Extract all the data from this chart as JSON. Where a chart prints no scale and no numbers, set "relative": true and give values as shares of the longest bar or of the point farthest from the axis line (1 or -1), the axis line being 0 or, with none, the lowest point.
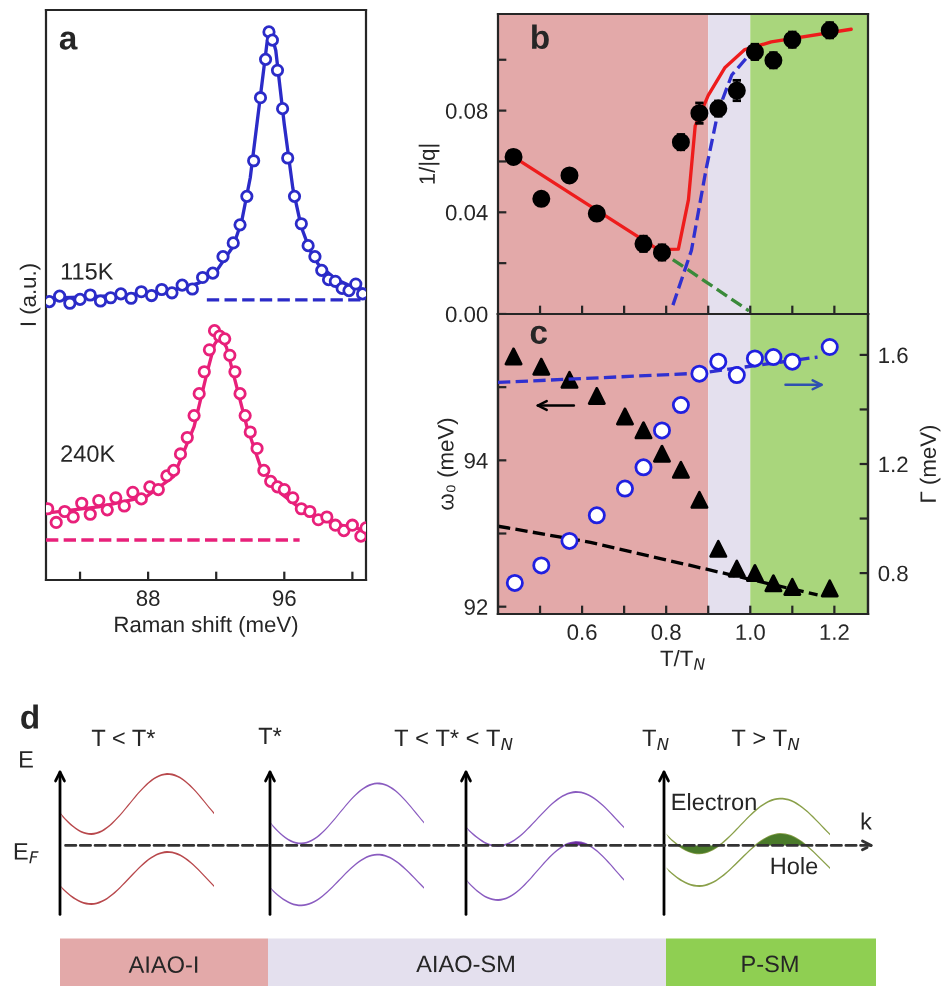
{
  "chart_data": [
    {
      "type": "line",
      "relative": true,
      "xlabel": "Raman shift (meV)",
      "ylabel": "I (a.u.)",
      "annotations": [
        "a",
        "115K",
        "240K"
      ],
      "xlim": [
        82,
        100.8
      ],
      "xticks": [
        {
          "value": 84,
          "label": null
        },
        88,
        {
          "value": 92,
          "label": null
        },
        96,
        {
          "value": 100,
          "label": null
        }
      ],
      "tick_labels": "x",
      "grid": false,
      "legend": false,
      "series": [
        {
          "type": "scatter",
          "marker": "circle",
          "color": "#2b2bc8",
          "x": [
            82.2,
            82.8,
            83.4,
            84.0,
            84.6,
            85.2,
            85.8,
            86.4,
            87.0,
            87.6,
            88.2,
            88.8,
            89.4,
            90.0,
            90.6,
            91.2,
            91.8,
            92.4,
            93.0,
            93.4,
            93.8,
            94.2,
            94.6,
            94.9,
            95.1,
            95.3,
            95.6,
            95.9,
            96.2,
            96.6,
            97.0,
            97.4,
            97.8,
            98.2,
            98.6,
            99.0,
            99.4,
            99.8,
            100.2,
            100.6
          ],
          "values": [
            0.508,
            0.518,
            0.505,
            0.512,
            0.52,
            0.509,
            0.515,
            0.522,
            0.514,
            0.526,
            0.519,
            0.53,
            0.524,
            0.538,
            0.531,
            0.552,
            0.56,
            0.59,
            0.615,
            0.648,
            0.7,
            0.765,
            0.88,
            0.95,
            1.0,
            0.985,
            0.93,
            0.86,
            0.77,
            0.7,
            0.65,
            0.61,
            0.59,
            0.565,
            0.548,
            0.545,
            0.532,
            0.528,
            0.54,
            0.522
          ]
        },
        {
          "type": "line",
          "line_style": "solid",
          "color": "#2b2bc8",
          "x": [
            82,
            84,
            86,
            88,
            90,
            91,
            92,
            93,
            93.5,
            94,
            94.5,
            95,
            95.2,
            95.5,
            96,
            96.5,
            97,
            97.5,
            98,
            99,
            100,
            100.8
          ],
          "values": [
            0.514,
            0.516,
            0.519,
            0.524,
            0.532,
            0.542,
            0.563,
            0.609,
            0.655,
            0.734,
            0.859,
            0.984,
            1.0,
            0.966,
            0.831,
            0.715,
            0.644,
            0.602,
            0.576,
            0.549,
            0.535,
            0.529
          ]
        },
        {
          "type": "line",
          "line_style": "dashed",
          "color": "#2b2bc8",
          "x": [
            91.45,
            100.8
          ],
          "values": [
            0.511,
            0.511
          ]
        },
        {
          "type": "scatter",
          "marker": "circle",
          "color": "#e8207a",
          "x": [
            82.1,
            82.6,
            83.1,
            83.6,
            84.1,
            84.6,
            85.1,
            85.6,
            86.1,
            86.6,
            87.1,
            87.6,
            88.1,
            88.6,
            89.1,
            89.5,
            89.9,
            90.3,
            90.7,
            91.0,
            91.3,
            91.6,
            91.9,
            92.2,
            92.5,
            92.8,
            93.1,
            93.4,
            93.7,
            94.0,
            94.4,
            94.8,
            95.2,
            95.6,
            96.0,
            96.5,
            97.0,
            97.5,
            98.0,
            98.5,
            99.0,
            99.5,
            100.0,
            100.5,
            100.8
          ],
          "values": [
            0.13,
            0.105,
            0.125,
            0.115,
            0.14,
            0.12,
            0.145,
            0.128,
            0.15,
            0.135,
            0.16,
            0.148,
            0.17,
            0.165,
            0.19,
            0.2,
            0.23,
            0.26,
            0.3,
            0.34,
            0.38,
            0.42,
            0.455,
            0.445,
            0.44,
            0.41,
            0.38,
            0.34,
            0.3,
            0.27,
            0.24,
            0.2,
            0.18,
            0.17,
            0.165,
            0.15,
            0.13,
            0.125,
            0.11,
            0.115,
            0.1,
            0.09,
            0.1,
            0.08,
            0.095
          ]
        },
        {
          "type": "line",
          "line_style": "solid",
          "color": "#e8207a",
          "x": [
            82.0,
            85.2,
            87.9,
            89.5,
            90.7,
            91.45,
            91.9,
            92.2,
            92.6,
            93.0,
            93.8,
            94.6,
            95.8,
            97.3,
            98.9,
            100.8
          ],
          "values": [
            0.122,
            0.134,
            0.152,
            0.189,
            0.28,
            0.377,
            0.43,
            0.444,
            0.425,
            0.377,
            0.28,
            0.207,
            0.158,
            0.122,
            0.103,
            0.091
          ]
        },
        {
          "type": "line",
          "line_style": "dashed",
          "color": "#e8207a",
          "x": [
            82.0,
            96.9
          ],
          "values": [
            0.073,
            0.073
          ]
        }
      ]
    },
    {
      "type": "scatter",
      "ylabel": "1/|q|",
      "annotations": [
        "b"
      ],
      "xlim": [
        0.4,
        1.28
      ],
      "xticks": [
        {
          "value": 0.5,
          "label": null
        },
        {
          "value": 0.6,
          "label": null
        },
        {
          "value": 0.7,
          "label": null
        },
        {
          "value": 0.8,
          "label": null
        },
        {
          "value": 0.9,
          "label": null
        },
        {
          "value": 1.0,
          "label": null
        },
        {
          "value": 1.1,
          "label": null
        },
        {
          "value": 1.2,
          "label": null
        }
      ],
      "ylim": [
        0,
        0.118
      ],
      "yticks": [
        {
          "value": 0,
          "label": "0.00"
        },
        {
          "value": 0.02,
          "label": null
        },
        {
          "value": 0.04,
          "label": "0.04"
        },
        {
          "value": 0.06,
          "label": null
        },
        {
          "value": 0.08,
          "label": "0.08"
        },
        {
          "value": 0.1,
          "label": null
        }
      ],
      "tick_labels": "y",
      "grid": false,
      "legend": false,
      "bands": [
        {
          "axis": "x",
          "from": 0.4,
          "to": 0.9,
          "color": "#e3a9a9"
        },
        {
          "axis": "x",
          "from": 0.9,
          "to": 1.0,
          "color": "#e4e0ee"
        },
        {
          "axis": "x",
          "from": 1.0,
          "to": 1.28,
          "color": "#a9d67c"
        }
      ],
      "series": [
        {
          "type": "line",
          "line_style": "solid",
          "color": "#ee1c1c",
          "x": [
            0.437,
            0.781,
            0.829,
            0.853,
            0.869,
            0.9,
            0.94,
            0.987,
            1.05,
            1.24
          ],
          "values": [
            0.0618,
            0.0253,
            0.0255,
            0.045,
            0.074,
            0.086,
            0.097,
            0.104,
            0.107,
            0.112
          ]
        },
        {
          "type": "line",
          "line_style": "dashed",
          "color": "#3030d0",
          "x": [
            0.816,
            0.86,
            0.895,
            0.924,
            0.956,
            1.003
          ],
          "values": [
            0.0035,
            0.025,
            0.057,
            0.08,
            0.094,
            0.103
          ]
        },
        {
          "type": "line",
          "line_style": "dashed",
          "color": "#3a8a3a",
          "x": [
            0.781,
            0.997
          ],
          "values": [
            0.0253,
            0.0012
          ]
        },
        {
          "type": "scatter",
          "marker": "circle",
          "color": "#000000",
          "x": [
            0.437,
            0.503,
            0.57,
            0.635,
            0.746,
            0.79,
            0.835,
            0.879,
            0.924,
            0.968,
            1.011,
            1.055,
            1.1,
            1.189
          ],
          "values": [
            0.0618,
            0.0453,
            0.0545,
            0.0395,
            0.0276,
            0.0242,
            0.0676,
            0.079,
            0.0808,
            0.0879,
            0.1031,
            0.0998,
            0.1079,
            0.1116
          ],
          "errors": [
            0.002,
            0.002,
            0.002,
            0.002,
            0.003,
            0.003,
            0.003,
            0.004,
            0.003,
            0.004,
            0.003,
            0.003,
            0.003,
            0.003
          ]
        }
      ]
    },
    {
      "type": "scatter",
      "xlabel": "T/T$_{N}$",
      "ylabel": "ω₀ (meV)",
      "y2label": "Γ (meV)",
      "annotations": [
        "c"
      ],
      "xlim": [
        0.4,
        1.28
      ],
      "xticks": [
        {
          "value": 0.5,
          "label": null
        },
        0.6,
        {
          "value": 0.7,
          "label": null
        },
        0.8,
        {
          "value": 0.9,
          "label": null
        },
        {
          "value": 1,
          "label": "1.0"
        },
        {
          "value": 1.1,
          "label": null
        },
        1.2
      ],
      "ylim": [
        91.9,
        96.0
      ],
      "yticks": [
        92,
        {
          "value": 93,
          "label": null
        },
        94,
        {
          "value": 95,
          "label": null
        }
      ],
      "y2lim": [
        0.65,
        1.75
      ],
      "y2ticks": [
        0.8,
        {
          "value": 1.0,
          "label": null
        },
        1.2,
        {
          "value": 1.4,
          "label": null
        },
        1.6
      ],
      "grid": false,
      "legend": false,
      "bands": [
        {
          "axis": "x",
          "from": 0.4,
          "to": 0.9,
          "color": "#e3a9a9"
        },
        {
          "axis": "x",
          "from": 0.9,
          "to": 1.0,
          "color": "#e4e0ee"
        },
        {
          "axis": "x",
          "from": 1.0,
          "to": 1.28,
          "color": "#a9d67c"
        }
      ],
      "series": [
        {
          "type": "line",
          "line_style": "dashed",
          "color": "#000000",
          "x": [
            0.4,
            0.62,
            0.89,
            1.16
          ],
          "values": [
            93.1,
            92.88,
            92.52,
            92.16
          ]
        },
        {
          "type": "line",
          "line_style": "dashed",
          "axis": "y2",
          "color": "#3030d0",
          "x": [
            0.4,
            0.879,
            1.16
          ],
          "values": [
            1.499,
            1.533,
            1.592
          ]
        },
        {
          "type": "scatter",
          "marker": "triangle",
          "color": "#000000",
          "x": [
            0.437,
            0.503,
            0.57,
            0.635,
            0.702,
            0.746,
            0.79,
            0.835,
            0.879,
            0.924,
            0.968,
            1.011,
            1.055,
            1.1,
            1.189
          ],
          "values": [
            95.42,
            95.28,
            95.1,
            94.88,
            94.6,
            94.41,
            94.09,
            93.87,
            93.46,
            92.79,
            92.52,
            92.46,
            92.32,
            92.27,
            92.25
          ]
        },
        {
          "type": "scatter",
          "marker": "circle",
          "axis": "y2",
          "color": "#2020e0",
          "x": [
            0.44,
            0.503,
            0.57,
            0.635,
            0.702,
            0.746,
            0.79,
            0.835,
            0.879,
            0.924,
            0.968,
            1.011,
            1.055,
            1.1,
            1.189
          ],
          "values": [
            0.764,
            0.828,
            0.918,
            1.012,
            1.11,
            1.188,
            1.323,
            1.416,
            1.531,
            1.575,
            1.526,
            1.587,
            1.592,
            1.575,
            1.629
          ]
        }
      ]
    },
    {
      "type": "other",
      "annotations": [
        "d",
        "T < T*",
        "T*",
        "T < T* < T$_{N}$",
        "T$_{N}$",
        "T > T$_{N}$",
        "E",
        "E$_{F}$",
        "k",
        "Electron",
        "Hole",
        "AIAO-I",
        "AIAO-SM",
        "P-SM"
      ]
    }
  ]
}
